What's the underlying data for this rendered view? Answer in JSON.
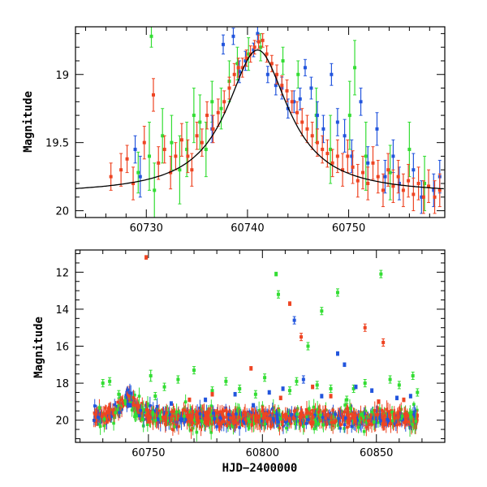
{
  "chart_data": [
    {
      "type": "scatter",
      "title": "",
      "xlabel": "",
      "ylabel": "Magnitude",
      "xlim": [
        60723,
        60759.5
      ],
      "ylim": [
        20.05,
        18.65
      ],
      "y_inverted": true,
      "xticks": [
        60730,
        60740,
        60750
      ],
      "yticks": [
        19,
        19.5,
        20
      ],
      "series": [
        {
          "color": "#33dd33",
          "points": [
            [
              60729.2,
              19.72,
              0.15
            ],
            [
              60730.3,
              19.6,
              0.25
            ],
            [
              60730.5,
              18.72,
              0.08
            ],
            [
              60730.8,
              19.85,
              0.2
            ],
            [
              60731.6,
              19.45,
              0.2
            ],
            [
              60732.5,
              19.5,
              0.2
            ],
            [
              60733.3,
              19.7,
              0.25
            ],
            [
              60734.0,
              19.55,
              0.2
            ],
            [
              60734.7,
              19.3,
              0.2
            ],
            [
              60735.3,
              19.35,
              0.2
            ],
            [
              60735.9,
              19.55,
              0.2
            ],
            [
              60736.5,
              19.2,
              0.15
            ],
            [
              60737.4,
              19.25,
              0.15
            ],
            [
              60738.2,
              19.05,
              0.15
            ],
            [
              60739.0,
              18.92,
              0.12
            ],
            [
              60740.1,
              18.85,
              0.12
            ],
            [
              60741.3,
              18.8,
              0.1
            ],
            [
              60743.5,
              18.9,
              0.1
            ],
            [
              60745.0,
              19.0,
              0.1
            ],
            [
              60746.8,
              19.3,
              0.2
            ],
            [
              60748.2,
              19.55,
              0.25
            ],
            [
              60750.1,
              19.3,
              0.25
            ],
            [
              60750.6,
              18.95,
              0.2
            ],
            [
              60751.7,
              19.6,
              0.25
            ],
            [
              60754.1,
              19.72,
              0.2
            ],
            [
              60756.0,
              19.55,
              0.2
            ],
            [
              60757.5,
              19.8,
              0.2
            ]
          ]
        },
        {
          "color": "#2255dd",
          "points": [
            [
              60728.9,
              19.55,
              0.1
            ],
            [
              60729.4,
              19.75,
              0.15
            ],
            [
              60736.5,
              19.4,
              0.1
            ],
            [
              60737.6,
              18.78,
              0.07
            ],
            [
              60738.6,
              18.72,
              0.06
            ],
            [
              60739.2,
              18.98,
              0.08
            ],
            [
              60739.8,
              18.9,
              0.07
            ],
            [
              60740.6,
              18.82,
              0.05
            ],
            [
              60741.0,
              18.7,
              0.06
            ],
            [
              60742.0,
              19.0,
              0.06
            ],
            [
              60742.8,
              19.08,
              0.07
            ],
            [
              60743.4,
              19.1,
              0.08
            ],
            [
              60744.0,
              19.25,
              0.07
            ],
            [
              60744.6,
              19.2,
              0.08
            ],
            [
              60745.2,
              19.18,
              0.08
            ],
            [
              60745.7,
              18.95,
              0.06
            ],
            [
              60746.3,
              19.1,
              0.08
            ],
            [
              60746.9,
              19.3,
              0.1
            ],
            [
              60747.5,
              19.4,
              0.1
            ],
            [
              60748.3,
              19.0,
              0.08
            ],
            [
              60748.9,
              19.35,
              0.1
            ],
            [
              60749.6,
              19.45,
              0.12
            ],
            [
              60750.3,
              19.6,
              0.12
            ],
            [
              60751.2,
              19.2,
              0.1
            ],
            [
              60751.9,
              19.65,
              0.12
            ],
            [
              60752.8,
              19.4,
              0.12
            ],
            [
              60753.6,
              19.75,
              0.12
            ],
            [
              60754.4,
              19.6,
              0.12
            ],
            [
              60755.0,
              19.8,
              0.12
            ],
            [
              60756.4,
              19.7,
              0.12
            ],
            [
              60757.2,
              19.9,
              0.12
            ],
            [
              60758.4,
              19.85,
              0.12
            ],
            [
              60759.0,
              19.75,
              0.12
            ]
          ]
        },
        {
          "color": "#ee4422",
          "points": [
            [
              60726.5,
              19.75,
              0.1
            ],
            [
              60727.5,
              19.7,
              0.12
            ],
            [
              60728.1,
              19.62,
              0.1
            ],
            [
              60728.7,
              19.8,
              0.12
            ],
            [
              60729.8,
              19.5,
              0.12
            ],
            [
              60730.7,
              19.15,
              0.12
            ],
            [
              60731.2,
              19.65,
              0.12
            ],
            [
              60731.8,
              19.55,
              0.1
            ],
            [
              60732.4,
              19.72,
              0.12
            ],
            [
              60732.9,
              19.6,
              0.1
            ],
            [
              60733.5,
              19.48,
              0.12
            ],
            [
              60734.1,
              19.6,
              0.12
            ],
            [
              60734.5,
              19.7,
              0.12
            ],
            [
              60735.0,
              19.45,
              0.1
            ],
            [
              60735.5,
              19.5,
              0.1
            ],
            [
              60736.0,
              19.3,
              0.1
            ],
            [
              60736.6,
              19.4,
              0.1
            ],
            [
              60737.1,
              19.28,
              0.1
            ],
            [
              60737.7,
              19.2,
              0.08
            ],
            [
              60738.2,
              19.1,
              0.08
            ],
            [
              60738.7,
              19.0,
              0.08
            ],
            [
              60739.1,
              18.95,
              0.07
            ],
            [
              60739.5,
              18.95,
              0.07
            ],
            [
              60739.9,
              18.88,
              0.06
            ],
            [
              60740.3,
              18.85,
              0.06
            ],
            [
              60740.7,
              18.8,
              0.05
            ],
            [
              60741.1,
              18.76,
              0.05
            ],
            [
              60741.5,
              18.75,
              0.05
            ],
            [
              60741.9,
              18.85,
              0.06
            ],
            [
              60742.4,
              18.92,
              0.06
            ],
            [
              60742.9,
              19.0,
              0.07
            ],
            [
              60743.4,
              19.08,
              0.07
            ],
            [
              60743.9,
              19.12,
              0.08
            ],
            [
              60744.4,
              19.2,
              0.08
            ],
            [
              60744.9,
              19.28,
              0.08
            ],
            [
              60745.4,
              19.35,
              0.1
            ],
            [
              60745.9,
              19.4,
              0.1
            ],
            [
              60746.4,
              19.45,
              0.1
            ],
            [
              60746.9,
              19.5,
              0.1
            ],
            [
              60747.4,
              19.55,
              0.1
            ],
            [
              60747.9,
              19.58,
              0.1
            ],
            [
              60748.4,
              19.65,
              0.1
            ],
            [
              60748.9,
              19.6,
              0.12
            ],
            [
              60749.4,
              19.7,
              0.12
            ],
            [
              60749.9,
              19.6,
              0.12
            ],
            [
              60750.4,
              19.68,
              0.12
            ],
            [
              60750.9,
              19.78,
              0.12
            ],
            [
              60751.4,
              19.72,
              0.12
            ],
            [
              60751.9,
              19.8,
              0.12
            ],
            [
              60752.4,
              19.65,
              0.12
            ],
            [
              60752.9,
              19.75,
              0.12
            ],
            [
              60753.4,
              19.85,
              0.12
            ],
            [
              60753.9,
              19.7,
              0.12
            ],
            [
              60754.4,
              19.82,
              0.12
            ],
            [
              60754.9,
              19.75,
              0.12
            ],
            [
              60755.4,
              19.85,
              0.12
            ],
            [
              60755.9,
              19.78,
              0.12
            ],
            [
              60756.4,
              19.88,
              0.12
            ],
            [
              60756.9,
              19.8,
              0.12
            ],
            [
              60757.4,
              19.9,
              0.12
            ],
            [
              60757.9,
              19.82,
              0.12
            ],
            [
              60758.5,
              19.9,
              0.12
            ],
            [
              60759.0,
              19.85,
              0.12
            ]
          ]
        }
      ],
      "model_curve": {
        "color": "#000000",
        "peak_x": 60741.0,
        "peak_mag": 18.82,
        "baseline_mag": 19.88,
        "width": 3.7
      }
    },
    {
      "type": "scatter",
      "title": "",
      "xlabel": "HJD−2400000",
      "ylabel": "Magnitude",
      "xlim": [
        60718,
        60880
      ],
      "ylim": [
        21.2,
        10.8
      ],
      "y_inverted": true,
      "xticks": [
        60750,
        60800,
        60850
      ],
      "yticks": [
        12,
        14,
        16,
        18,
        20
      ],
      "series": [
        {
          "color": "#33dd33",
          "points": [
            [
              60730,
              18.0,
              0.2
            ],
            [
              60733,
              17.9,
              0.2
            ],
            [
              60737,
              18.6,
              0.2
            ],
            [
              60751,
              17.6,
              0.3
            ],
            [
              60753,
              18.7,
              0.2
            ],
            [
              60757,
              18.2,
              0.2
            ],
            [
              60763,
              17.8,
              0.2
            ],
            [
              60770,
              17.3,
              0.2
            ],
            [
              60778,
              18.4,
              0.2
            ],
            [
              60784,
              17.9,
              0.2
            ],
            [
              60790,
              18.3,
              0.2
            ],
            [
              60797,
              18.6,
              0.2
            ],
            [
              60801,
              17.7,
              0.2
            ],
            [
              60806,
              12.1,
              0.1
            ],
            [
              60807,
              13.2,
              0.2
            ],
            [
              60812,
              18.4,
              0.2
            ],
            [
              60815,
              17.9,
              0.2
            ],
            [
              60820,
              16.0,
              0.2
            ],
            [
              60824,
              18.1,
              0.2
            ],
            [
              60826,
              14.1,
              0.2
            ],
            [
              60830,
              18.3,
              0.2
            ],
            [
              60833,
              13.1,
              0.2
            ],
            [
              60837,
              18.9,
              0.2
            ],
            [
              60840,
              18.3,
              0.2
            ],
            [
              60845,
              18.0,
              0.2
            ],
            [
              60852,
              12.1,
              0.2
            ],
            [
              60856,
              17.8,
              0.2
            ],
            [
              60860,
              18.1,
              0.2
            ],
            [
              60866,
              17.6,
              0.2
            ],
            [
              60868,
              18.5,
              0.2
            ]
          ]
        },
        {
          "color": "#2255dd",
          "points": [
            [
              60742,
              19.2,
              0.1
            ],
            [
              60760,
              19.1,
              0.1
            ],
            [
              60775,
              18.9,
              0.1
            ],
            [
              60788,
              18.6,
              0.1
            ],
            [
              60796,
              19.2,
              0.1
            ],
            [
              60803,
              18.5,
              0.1
            ],
            [
              60809,
              18.3,
              0.1
            ],
            [
              60814,
              14.6,
              0.2
            ],
            [
              60818,
              17.8,
              0.2
            ],
            [
              60826,
              18.7,
              0.1
            ],
            [
              60833,
              16.4,
              0.1
            ],
            [
              60836,
              17.0,
              0.1
            ],
            [
              60841,
              18.2,
              0.1
            ],
            [
              60848,
              18.4,
              0.1
            ],
            [
              60859,
              18.8,
              0.1
            ],
            [
              60865,
              18.7,
              0.1
            ]
          ]
        },
        {
          "color": "#ee4422",
          "points": [
            [
              60749,
              11.2,
              0.1
            ],
            [
              60768,
              18.9,
              0.1
            ],
            [
              60778,
              18.6,
              0.1
            ],
            [
              60795,
              17.2,
              0.1
            ],
            [
              60808,
              18.8,
              0.1
            ],
            [
              60812,
              13.7,
              0.1
            ],
            [
              60817,
              15.5,
              0.2
            ],
            [
              60822,
              18.2,
              0.1
            ],
            [
              60830,
              18.7,
              0.1
            ],
            [
              60845,
              15.0,
              0.2
            ],
            [
              60851,
              19.0,
              0.1
            ],
            [
              60853,
              15.8,
              0.2
            ],
            [
              60862,
              18.9,
              0.1
            ]
          ]
        }
      ],
      "model_curve": {
        "color": "#000000",
        "peak_x": 60741.0,
        "peak_mag": 18.82,
        "baseline_mag": 19.88,
        "width": 3.7
      }
    }
  ]
}
